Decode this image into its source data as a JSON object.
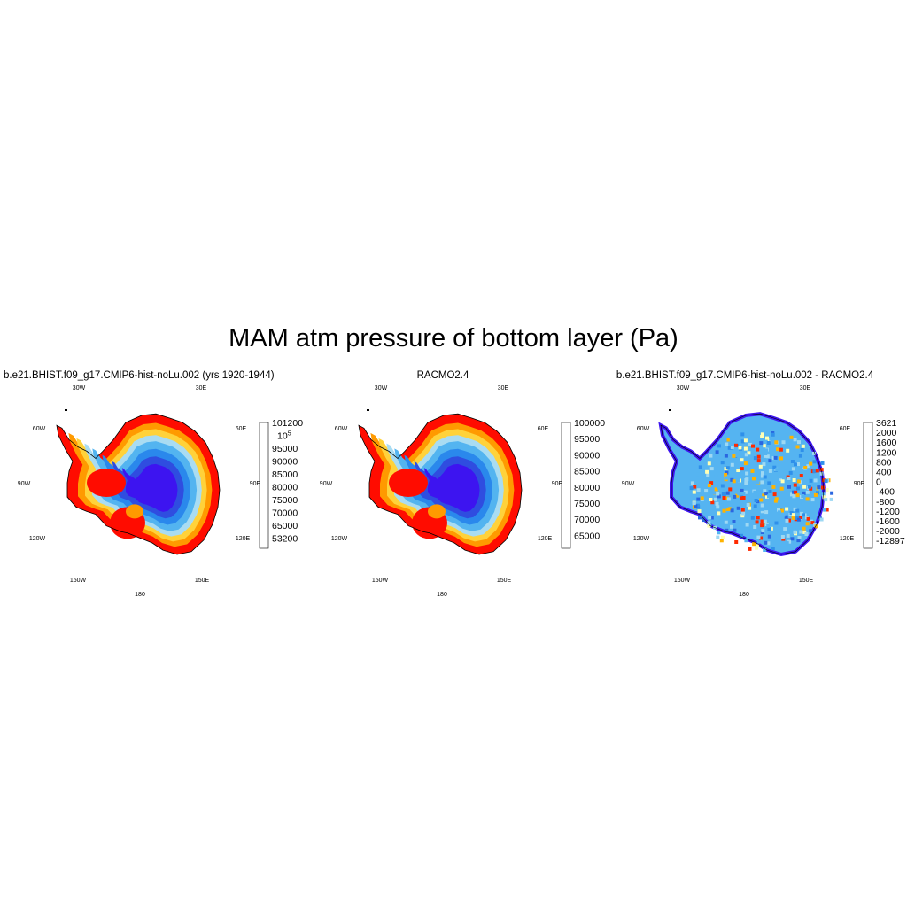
{
  "title": "MAM atm pressure of bottom layer (Pa)",
  "colors": {
    "pressure": [
      "#3d14f0",
      "#2f4de0",
      "#2a88ec",
      "#53b4f0",
      "#a9dcf2",
      "#ffd23a",
      "#ff9a00",
      "#ff0c00",
      "#d42a24"
    ],
    "difference": [
      "#3d14f0",
      "#2c3ddb",
      "#2a66e0",
      "#2f90ea",
      "#55b4f1",
      "#9ed8f3",
      "#ffffb3",
      "#ffde5a",
      "#ffb300",
      "#ff7a00",
      "#ff2a00",
      "#e00000",
      "#c62828"
    ]
  },
  "panels": [
    {
      "title": "b.e21.BHIST.f09_g17.CMIP6-hist-noLu.002 (yrs 1920-1944)",
      "map_kind": "model",
      "lon_labels": [
        "30W",
        "30E",
        "60W",
        "60E",
        "90W",
        "90E",
        "120W",
        "120E",
        "150W",
        "150E",
        "180"
      ],
      "colorbar": {
        "labels": [
          "101200",
          "10^5",
          "95000",
          "90000",
          "85000",
          "80000",
          "75000",
          "70000",
          "65000",
          "53200"
        ]
      }
    },
    {
      "title": "RACMO2.4",
      "map_kind": "model",
      "lon_labels": [
        "30W",
        "30E",
        "60W",
        "60E",
        "90W",
        "90E",
        "120W",
        "120E",
        "150W",
        "150E",
        "180"
      ],
      "colorbar": {
        "labels": [
          "100000",
          "95000",
          "90000",
          "85000",
          "80000",
          "75000",
          "70000",
          "65000"
        ]
      }
    },
    {
      "title": "b.e21.BHIST.f09_g17.CMIP6-hist-noLu.002 - RACMO2.4",
      "map_kind": "diff",
      "lon_labels": [
        "30W",
        "30E",
        "60W",
        "60E",
        "90W",
        "90E",
        "120W",
        "120E",
        "150W",
        "150E",
        "180"
      ],
      "colorbar": {
        "labels": [
          "3621",
          "2000",
          "1600",
          "1200",
          "800",
          "400",
          "0",
          "-400",
          "-800",
          "-1200",
          "-1600",
          "-2000",
          "-12897"
        ]
      }
    }
  ]
}
